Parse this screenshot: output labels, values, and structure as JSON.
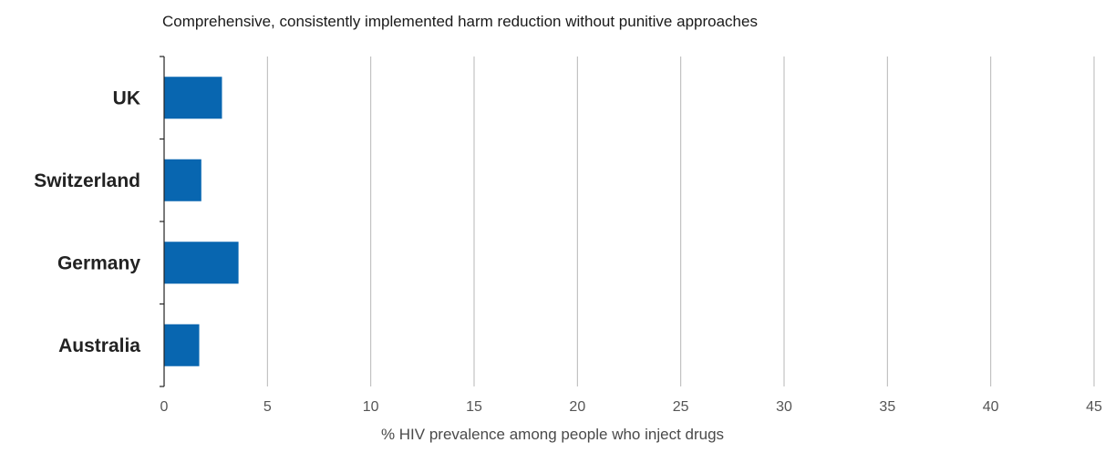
{
  "chart_data": {
    "type": "bar",
    "orientation": "horizontal",
    "title": "Comprehensive, consistently implemented harm reduction without punitive approaches",
    "xlabel": "% HIV prevalence among people who inject drugs",
    "ylabel": "",
    "categories": [
      "UK",
      "Switzerland",
      "Germany",
      "Australia"
    ],
    "values": [
      2.8,
      1.8,
      3.6,
      1.7
    ],
    "xlim": [
      0,
      45
    ],
    "xticks": [
      0,
      5,
      10,
      15,
      20,
      25,
      30,
      35,
      40,
      45
    ],
    "grid": "vertical",
    "bar_color": "#0866b0",
    "grid_color": "#b7b7b7",
    "axis_color": "#222222",
    "tick_label_color": "#555555"
  }
}
